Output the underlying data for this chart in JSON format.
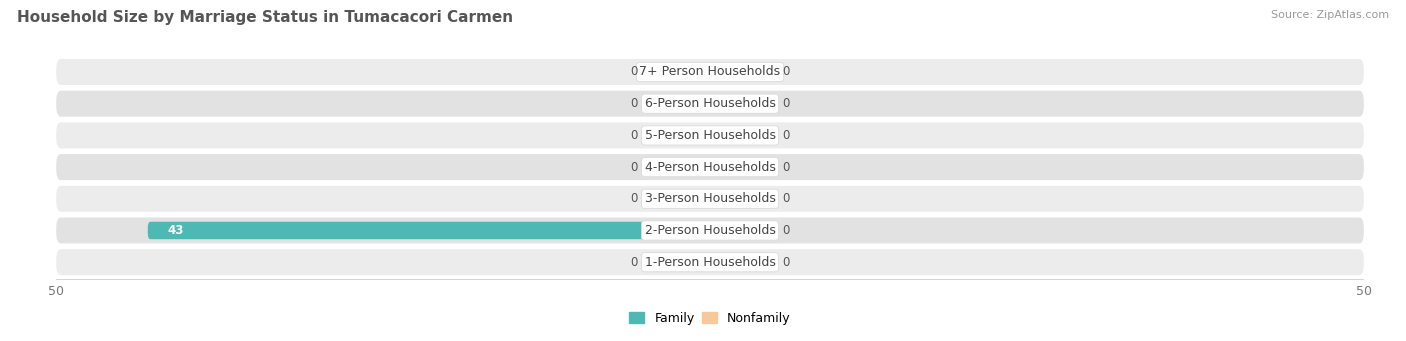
{
  "title": "Household Size by Marriage Status in Tumacacori Carmen",
  "source": "Source: ZipAtlas.com",
  "categories": [
    "7+ Person Households",
    "6-Person Households",
    "5-Person Households",
    "4-Person Households",
    "3-Person Households",
    "2-Person Households",
    "1-Person Households"
  ],
  "family_values": [
    0,
    0,
    0,
    0,
    0,
    43,
    0
  ],
  "nonfamily_values": [
    0,
    0,
    0,
    0,
    0,
    0,
    0
  ],
  "family_color": "#4db8b4",
  "family_color_stub": "#80ceca",
  "nonfamily_color": "#f5c99a",
  "row_bg_even": "#ececec",
  "row_bg_odd": "#e2e2e2",
  "label_box_color": "#ffffff",
  "label_box_edge": "#dddddd",
  "xlim": 50,
  "stub_size": 5,
  "legend_family": "Family",
  "legend_nonfamily": "Nonfamily",
  "background_color": "#ffffff",
  "title_fontsize": 11,
  "source_fontsize": 8,
  "tick_fontsize": 9,
  "label_fontsize": 9,
  "value_fontsize": 8.5
}
